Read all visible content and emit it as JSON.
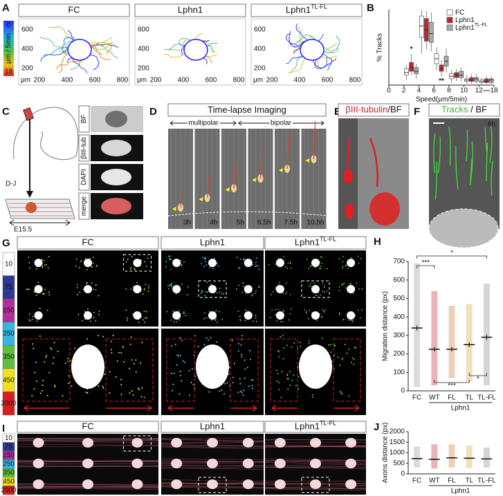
{
  "panel_a": {
    "label": "A",
    "colorbar": {
      "top": "0",
      "unit": "μm / 5min",
      "bottom": "18"
    },
    "titles": [
      {
        "text": "FC"
      },
      {
        "text": "Lphn1"
      },
      {
        "text": "Lphn1",
        "sup": "TL-FL"
      }
    ],
    "yticks": [
      "600",
      "400",
      "200"
    ],
    "xticks": [
      "200",
      "400",
      "600",
      "800"
    ],
    "unit": "μm"
  },
  "panel_c": {
    "label": "C",
    "section": "D-J",
    "stage": "E15.5",
    "channels": [
      "BF",
      "βIII-tub",
      "DAPI",
      "merge"
    ]
  },
  "panel_d": {
    "label": "D",
    "title": "Time-lapse Imaging",
    "phases": [
      "multipolar",
      "bipolar"
    ],
    "times": [
      "3h",
      "4h",
      "5h",
      "6.5h",
      "7.5h",
      "10.5h"
    ]
  },
  "panel_e": {
    "label": "E",
    "title_red": "βIII-tubulin",
    "title_rest": "/BF"
  },
  "panel_f": {
    "label": "F",
    "title_green": "Tracks",
    "title_rest": " / BF",
    "time": "6h"
  },
  "panel_g": {
    "label": "G",
    "colorbar": [
      "10",
      "75",
      "150",
      "250",
      "350",
      "450",
      "2000"
    ],
    "titles": [
      {
        "text": "FC"
      },
      {
        "text": "Lphn1"
      },
      {
        "text": "Lphn1",
        "sup": "TL-FL"
      }
    ]
  },
  "panel_i": {
    "label": "I",
    "colorbar": [
      "10",
      "75",
      "150",
      "250",
      "350",
      "450",
      "2000"
    ],
    "titles": [
      {
        "text": "FC"
      },
      {
        "text": "Lphn1"
      },
      {
        "text": "Lphn1",
        "sup": "TL-FL"
      }
    ]
  },
  "chart_data": [
    {
      "type": "box",
      "label": "B",
      "ylabel": "% Tracks",
      "xlabel": "Speed(μm/5min)",
      "xlim": [
        0,
        18
      ],
      "xticks": [
        0,
        2,
        4,
        6,
        8,
        10,
        12,
        18
      ],
      "ylim": [
        0,
        60
      ],
      "x": [
        3,
        5,
        7,
        9,
        11,
        15
      ],
      "series": [
        {
          "name": "FC",
          "color": "#ffffff",
          "min": [
            4,
            25,
            12,
            2,
            1,
            0
          ],
          "q1": [
            8,
            38,
            17,
            5,
            3,
            2
          ],
          "median": [
            10,
            47,
            21,
            7,
            4,
            3
          ],
          "q3": [
            13,
            55,
            25,
            9,
            5,
            4
          ],
          "max": [
            16,
            60,
            30,
            12,
            8,
            6
          ]
        },
        {
          "name": "Lphn1",
          "color": "#c0272d",
          "min": [
            8,
            28,
            7,
            3,
            1,
            1
          ],
          "q1": [
            11,
            35,
            11,
            6,
            3,
            2
          ],
          "median": [
            14,
            44,
            13,
            8,
            4,
            3
          ],
          "q3": [
            18,
            53,
            16,
            10,
            6,
            5
          ],
          "max": [
            25,
            59,
            20,
            13,
            9,
            7
          ]
        },
        {
          "name": "Lphn1",
          "name_sup": "TL-FL",
          "color": "#aaaaaa",
          "min": [
            5,
            27,
            10,
            3,
            1,
            1
          ],
          "q1": [
            9,
            34,
            15,
            6,
            3,
            2
          ],
          "median": [
            11,
            41,
            19,
            8,
            5,
            4
          ],
          "q3": [
            14,
            50,
            23,
            11,
            6,
            5
          ],
          "max": [
            17,
            58,
            29,
            14,
            9,
            7
          ]
        }
      ],
      "annotations": [
        {
          "text": "*",
          "series": 1,
          "index": 0
        },
        {
          "text": "**",
          "series": 1,
          "index": 2
        }
      ]
    },
    {
      "type": "dot",
      "label": "H",
      "ylabel": "Migration distance (px)",
      "group_label": "Lphn1",
      "categories": [
        "FC",
        "WT",
        "FL",
        "TL",
        "TL-FL"
      ],
      "colors": [
        "#ffffff",
        "#c0272d",
        "#c8772a",
        "#d9a441",
        "#8a8a8a"
      ],
      "ylim": [
        0,
        700
      ],
      "yticks": [
        0,
        100,
        200,
        300,
        400,
        500,
        600,
        700
      ],
      "mean": [
        340,
        225,
        225,
        250,
        290
      ],
      "error": [
        15,
        12,
        12,
        14,
        15
      ],
      "min": [
        20,
        30,
        70,
        50,
        30
      ],
      "max": [
        690,
        540,
        460,
        470,
        580
      ],
      "significance": [
        {
          "text": "*",
          "from": 0,
          "to": 4
        },
        {
          "text": "***",
          "from": 0,
          "to": 1
        },
        {
          "text": "***",
          "from": 1,
          "to": 3
        },
        {
          "text": "*",
          "from": 3,
          "to": 4
        }
      ]
    },
    {
      "type": "dot",
      "label": "J",
      "ylabel": "Axons distance (px)",
      "group_label": "Lphn1",
      "categories": [
        "FC",
        "WT",
        "FL",
        "TL",
        "TL-FL"
      ],
      "colors": [
        "#ffffff",
        "#c0272d",
        "#c8772a",
        "#d9a441",
        "#8a8a8a"
      ],
      "ylim": [
        0,
        2000
      ],
      "yticks": [
        0,
        500,
        1000,
        1500,
        2000
      ],
      "mean": [
        720,
        690,
        760,
        740,
        710
      ],
      "error": [
        25,
        25,
        25,
        25,
        25
      ],
      "min": [
        300,
        250,
        300,
        280,
        300
      ],
      "max": [
        1300,
        1400,
        1400,
        1350,
        1250
      ]
    }
  ]
}
